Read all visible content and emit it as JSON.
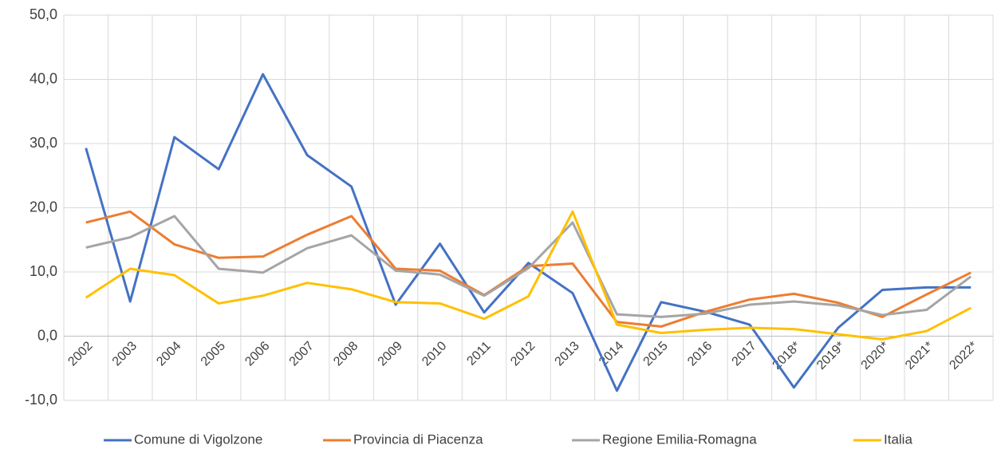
{
  "chart_data": {
    "type": "line",
    "categories": [
      "2002",
      "2003",
      "2004",
      "2005",
      "2006",
      "2007",
      "2008",
      "2009",
      "2010",
      "2011",
      "2012",
      "2013",
      "2014",
      "2015",
      "2016",
      "2017",
      "2018*",
      "2019*",
      "2020*",
      "2021*",
      "2022*"
    ],
    "series": [
      {
        "name": "Comune di Vigolzone",
        "color": "#4472c4",
        "values": [
          29.3,
          5.4,
          31.0,
          26.0,
          40.8,
          28.2,
          23.3,
          4.9,
          14.4,
          3.7,
          11.4,
          6.7,
          -8.5,
          5.3,
          3.8,
          1.8,
          -8.0,
          1.3,
          7.2,
          7.6,
          7.6
        ]
      },
      {
        "name": "Provincia di Piacenza",
        "color": "#ed7d31",
        "values": [
          17.7,
          19.4,
          14.3,
          12.2,
          12.4,
          15.8,
          18.7,
          10.5,
          10.2,
          6.4,
          10.9,
          11.3,
          2.2,
          1.5,
          3.8,
          5.7,
          6.6,
          5.2,
          3.0,
          6.5,
          9.9
        ]
      },
      {
        "name": "Regione Emilia-Romagna",
        "color": "#a5a5a5",
        "values": [
          13.8,
          15.4,
          18.7,
          10.5,
          9.9,
          13.7,
          15.7,
          10.2,
          9.6,
          6.3,
          10.6,
          17.7,
          3.4,
          3.0,
          3.5,
          4.9,
          5.4,
          4.8,
          3.3,
          4.1,
          9.3
        ]
      },
      {
        "name": "Italia",
        "color": "#ffc000",
        "values": [
          6.0,
          10.5,
          9.5,
          5.1,
          6.3,
          8.3,
          7.3,
          5.3,
          5.1,
          2.7,
          6.2,
          19.4,
          1.8,
          0.5,
          1.0,
          1.3,
          1.1,
          0.3,
          -0.5,
          0.8,
          4.4
        ]
      }
    ],
    "ylim": [
      -10,
      50
    ],
    "yticks": [
      {
        "value": -10,
        "label": "-10,0"
      },
      {
        "value": 0,
        "label": "0,0"
      },
      {
        "value": 10,
        "label": "10,0"
      },
      {
        "value": 20,
        "label": "20,0"
      },
      {
        "value": 30,
        "label": "30,0"
      },
      {
        "value": 40,
        "label": "40,0"
      },
      {
        "value": 50,
        "label": "50,0"
      }
    ],
    "grid": true,
    "legend": "bottom"
  }
}
